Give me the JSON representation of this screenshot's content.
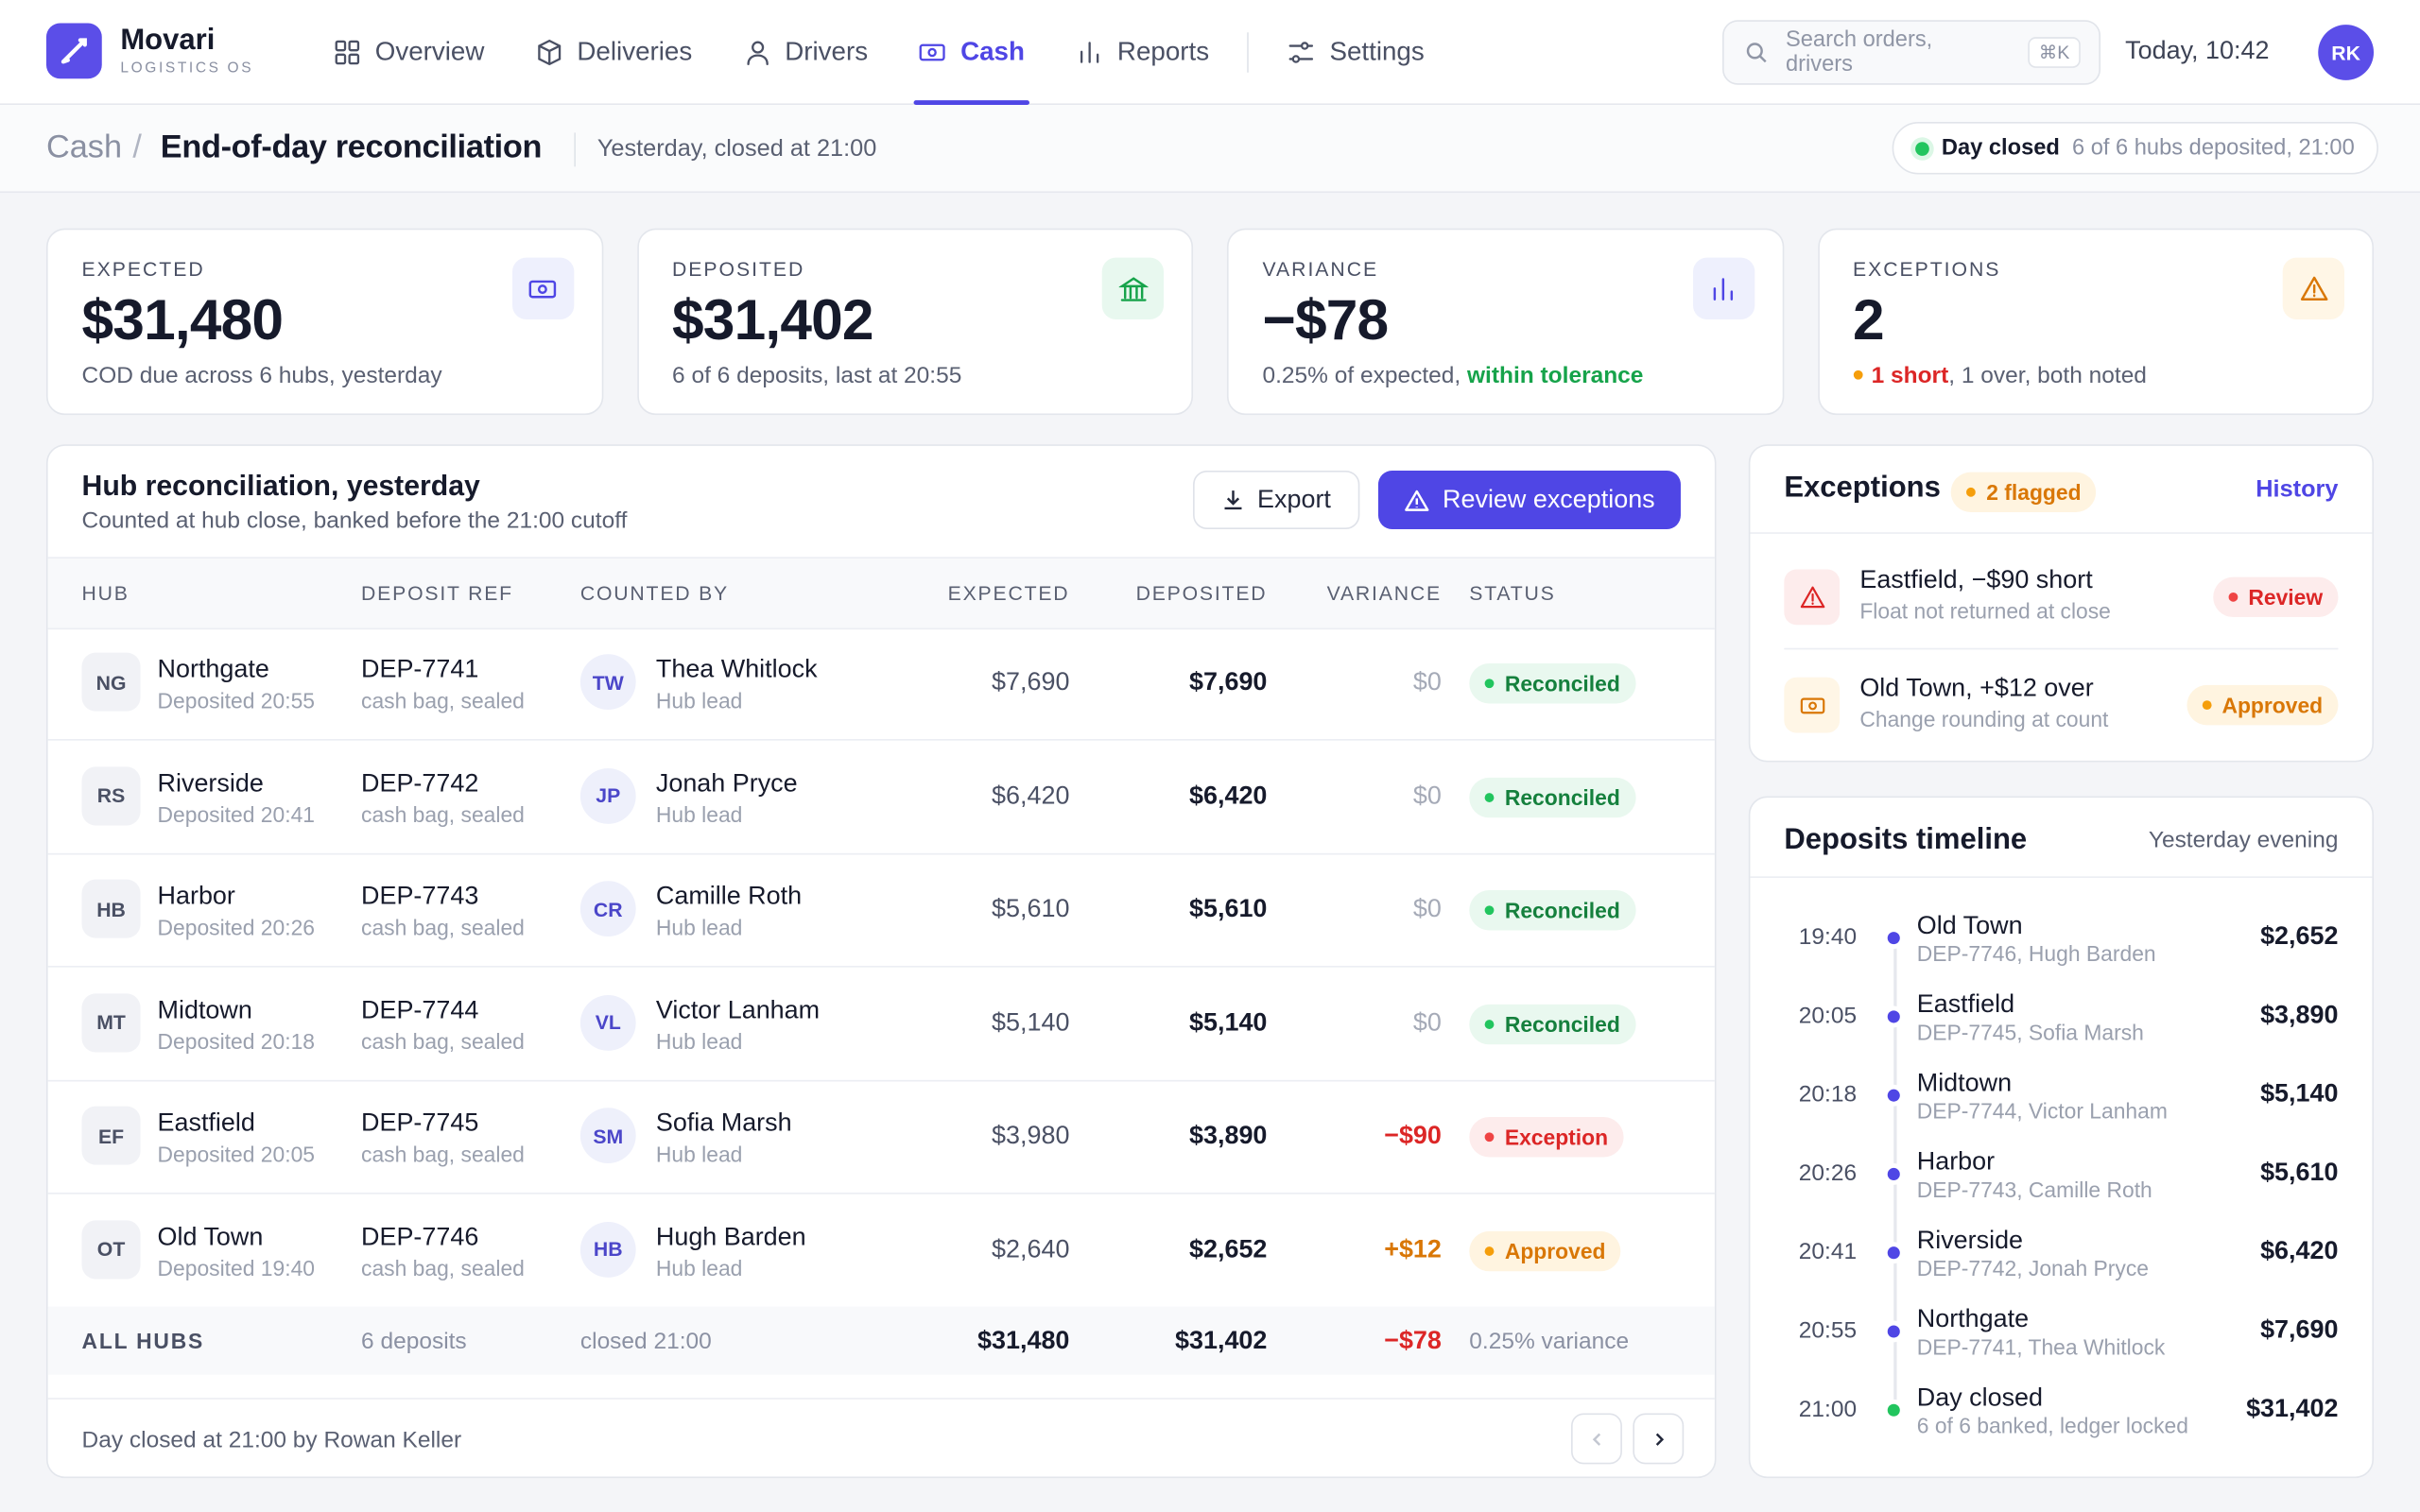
{
  "brand": {
    "name": "Movari",
    "tagline": "LOGISTICS OS"
  },
  "nav": [
    {
      "label": "Overview",
      "icon": "grid"
    },
    {
      "label": "Deliveries",
      "icon": "box"
    },
    {
      "label": "Drivers",
      "icon": "user"
    },
    {
      "label": "Cash",
      "icon": "cash",
      "active": true
    },
    {
      "label": "Reports",
      "icon": "bars"
    },
    {
      "label": "Settings",
      "icon": "sliders"
    }
  ],
  "search": {
    "placeholder": "Search orders, drivers",
    "shortcut": "⌘K"
  },
  "clock": "Today, 10:42",
  "avatar": "RK",
  "breadcrumb": {
    "parent": "Cash",
    "separator": "/",
    "current": "End-of-day reconciliation",
    "meta": "Yesterday, closed at 21:00"
  },
  "status_pill": {
    "label": "Day closed",
    "detail": "6 of 6 hubs deposited, 21:00"
  },
  "kpis": [
    {
      "label": "EXPECTED",
      "value": "$31,480",
      "icon": "cash",
      "tone": "indigo",
      "note": [
        {
          "text": "COD due across 6 hubs, yesterday"
        }
      ]
    },
    {
      "label": "DEPOSITED",
      "value": "$31,402",
      "icon": "bank",
      "tone": "green",
      "note": [
        {
          "text": "6 of 6 deposits, last at 20:55"
        }
      ]
    },
    {
      "label": "VARIANCE",
      "value": "−$78",
      "icon": "bars",
      "tone": "indigo",
      "note": [
        {
          "text": "0.25% of expected, "
        },
        {
          "text": "within tolerance",
          "tone": "green"
        }
      ]
    },
    {
      "label": "EXCEPTIONS",
      "value": "2",
      "icon": "warn",
      "tone": "amber",
      "dot": "amber",
      "note": [
        {
          "text": "1 short",
          "tone": "red"
        },
        {
          "text": ", 1 over, both noted"
        }
      ]
    }
  ],
  "table": {
    "title": "Hub reconciliation, yesterday",
    "subtitle": "Counted at hub close, banked before the 21:00 cutoff",
    "actions": [
      "Export",
      "Review exceptions"
    ],
    "columns": [
      "HUB",
      "DEPOSIT REF",
      "COUNTED BY",
      "EXPECTED",
      "DEPOSITED",
      "VARIANCE",
      "STATUS"
    ],
    "rows": [
      {
        "code": "NG",
        "hub": "Northgate",
        "time": "Deposited 20:55",
        "ref": "DEP-7741",
        "ref_note": "cash bag, sealed",
        "initials": "TW",
        "counter": "Thea Whitlock",
        "role": "Hub lead",
        "expected": "$7,690",
        "deposited": "$7,690",
        "variance": "$0",
        "variance_tone": "muted",
        "status": "Reconciled",
        "status_tone": "green"
      },
      {
        "code": "RS",
        "hub": "Riverside",
        "time": "Deposited 20:41",
        "ref": "DEP-7742",
        "ref_note": "cash bag, sealed",
        "initials": "JP",
        "counter": "Jonah Pryce",
        "role": "Hub lead",
        "expected": "$6,420",
        "deposited": "$6,420",
        "variance": "$0",
        "variance_tone": "muted",
        "status": "Reconciled",
        "status_tone": "green"
      },
      {
        "code": "HB",
        "hub": "Harbor",
        "time": "Deposited 20:26",
        "ref": "DEP-7743",
        "ref_note": "cash bag, sealed",
        "initials": "CR",
        "counter": "Camille Roth",
        "role": "Hub lead",
        "expected": "$5,610",
        "deposited": "$5,610",
        "variance": "$0",
        "variance_tone": "muted",
        "status": "Reconciled",
        "status_tone": "green"
      },
      {
        "code": "MT",
        "hub": "Midtown",
        "time": "Deposited 20:18",
        "ref": "DEP-7744",
        "ref_note": "cash bag, sealed",
        "initials": "VL",
        "counter": "Victor Lanham",
        "role": "Hub lead",
        "expected": "$5,140",
        "deposited": "$5,140",
        "variance": "$0",
        "variance_tone": "muted",
        "status": "Reconciled",
        "status_tone": "green"
      },
      {
        "code": "EF",
        "hub": "Eastfield",
        "time": "Deposited 20:05",
        "ref": "DEP-7745",
        "ref_note": "cash bag, sealed",
        "initials": "SM",
        "counter": "Sofia Marsh",
        "role": "Hub lead",
        "expected": "$3,980",
        "deposited": "$3,890",
        "variance": "−$90",
        "variance_tone": "red",
        "status": "Exception",
        "status_tone": "red"
      },
      {
        "code": "OT",
        "hub": "Old Town",
        "time": "Deposited 19:40",
        "ref": "DEP-7746",
        "ref_note": "cash bag, sealed",
        "initials": "HB",
        "counter": "Hugh Barden",
        "role": "Hub lead",
        "expected": "$2,640",
        "deposited": "$2,652",
        "variance": "+$12",
        "variance_tone": "amber",
        "status": "Approved",
        "status_tone": "amber"
      }
    ],
    "totals": {
      "label": "ALL HUBS",
      "deposits": "6 deposits",
      "closed": "closed 21:00",
      "expected": "$31,480",
      "deposited": "$31,402",
      "variance": "−$78",
      "note": "0.25% variance"
    },
    "footer": "Day closed at 21:00 by Rowan Keller"
  },
  "exceptions": {
    "title": "Exceptions",
    "badge": "2 flagged",
    "link": "History",
    "items": [
      {
        "title": "Eastfield, −$90 short",
        "note": "Float not returned at close",
        "status": "Review",
        "tone": "red",
        "icon": "warn"
      },
      {
        "title": "Old Town, +$12 over",
        "note": "Change rounding at count",
        "status": "Approved",
        "tone": "amber",
        "icon": "cash"
      }
    ]
  },
  "timeline": {
    "title": "Deposits timeline",
    "meta": "Yesterday evening",
    "items": [
      {
        "time": "19:40",
        "title": "Old Town",
        "sub": "DEP-7746, Hugh Barden",
        "amount": "$2,652"
      },
      {
        "time": "20:05",
        "title": "Eastfield",
        "sub": "DEP-7745, Sofia Marsh",
        "amount": "$3,890"
      },
      {
        "time": "20:18",
        "title": "Midtown",
        "sub": "DEP-7744, Victor Lanham",
        "amount": "$5,140"
      },
      {
        "time": "20:26",
        "title": "Harbor",
        "sub": "DEP-7743, Camille Roth",
        "amount": "$5,610"
      },
      {
        "time": "20:41",
        "title": "Riverside",
        "sub": "DEP-7742, Jonah Pryce",
        "amount": "$6,420"
      },
      {
        "time": "20:55",
        "title": "Northgate",
        "sub": "DEP-7741, Thea Whitlock",
        "amount": "$7,690"
      },
      {
        "time": "21:00",
        "title": "Day closed",
        "sub": "6 of 6 banked, ledger locked",
        "amount": "$31,402",
        "tone": "green"
      }
    ]
  }
}
